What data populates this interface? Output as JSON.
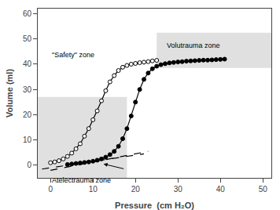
{
  "chart_data": {
    "type": "line",
    "xlabel": "Pressure  (cm H₂O)",
    "ylabel": "Volume (ml)",
    "xlim": [
      -3,
      52
    ],
    "ylim": [
      -5,
      62
    ],
    "xticks": [
      0,
      10,
      20,
      30,
      40,
      50
    ],
    "yticks": [
      0,
      10,
      20,
      30,
      40,
      50,
      60
    ],
    "grid": false,
    "background_color": "#ffffff",
    "series": [
      {
        "type": "line",
        "marker": "circle-open",
        "line_style": "solid",
        "color": "#000000",
        "x": [
          0,
          1,
          2,
          3,
          4,
          5,
          6,
          7,
          8,
          9,
          10,
          11,
          12,
          13,
          14,
          15,
          16,
          17,
          18,
          19,
          20,
          21,
          22,
          23,
          24,
          25
        ],
        "values": [
          1.0,
          1.3,
          1.8,
          2.5,
          3.5,
          4.8,
          6.5,
          8.5,
          11.5,
          14.5,
          18.0,
          21.5,
          25.5,
          29.5,
          33.0,
          35.5,
          37.5,
          38.8,
          39.5,
          40.0,
          40.3,
          40.6,
          40.8,
          41.0,
          41.3,
          41.5
        ]
      },
      {
        "type": "line",
        "marker": "circle",
        "line_style": "solid",
        "color": "#000000",
        "x": [
          4,
          5,
          6,
          7,
          8,
          9,
          10,
          11,
          12,
          13,
          14,
          15,
          16,
          17,
          18,
          19,
          20,
          21,
          22,
          23,
          24,
          25,
          26,
          27,
          28,
          29,
          30,
          31,
          32,
          33,
          34,
          35,
          36,
          37,
          38,
          39,
          40,
          41
        ],
        "values": [
          0.3,
          0.5,
          0.7,
          0.9,
          1.1,
          1.3,
          1.6,
          2.0,
          2.5,
          3.2,
          4.2,
          5.5,
          7.5,
          10.5,
          14.5,
          19.5,
          25.0,
          30.0,
          34.0,
          36.5,
          38.2,
          39.2,
          39.8,
          40.2,
          40.5,
          40.7,
          40.9,
          41.0,
          41.2,
          41.3,
          41.4,
          41.5,
          41.6,
          41.6,
          41.7,
          41.8,
          41.9,
          42.0
        ]
      },
      {
        "type": "line",
        "marker": "none",
        "line_style": "dashed",
        "color": "#000000",
        "x": [
          -2,
          22
        ],
        "values": [
          -1.5,
          4.5
        ]
      },
      {
        "type": "line",
        "marker": "none",
        "line_style": "dashed",
        "color": "#000000",
        "x": [
          0,
          23
        ],
        "values": [
          -2.0,
          5.5
        ]
      }
    ],
    "zones": [
      {
        "x": -3,
        "y": -5,
        "width": 21,
        "height": 32,
        "color": "#e0e0e0"
      },
      {
        "x": 25,
        "y": 38.5,
        "width": 27,
        "height": 14,
        "color": "#e0e0e0"
      }
    ],
    "arrows": [
      {
        "tail_x": 17.5,
        "tail_y": -1.5,
        "head_x": 12.5,
        "head_y": 0.5,
        "color": "#000000"
      }
    ],
    "annotations": [
      {
        "text": "\"Safety\" zone",
        "x": 0,
        "y": 46
      },
      {
        "text": "Atelectrauma zone",
        "x": 0,
        "y": -3.8
      },
      {
        "text": "Volutrauma zone",
        "x": 27,
        "y": 49.5
      }
    ]
  }
}
